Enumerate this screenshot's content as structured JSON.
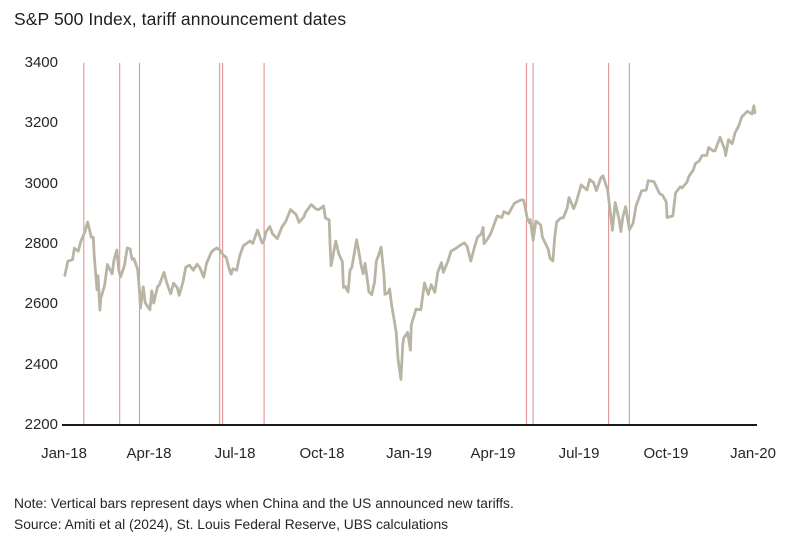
{
  "title": "S&P 500 Index, tariff announcement dates",
  "note": "Note: Vertical bars represent days when China and the US announced new tariffs.",
  "source": "Source: Amiti et al (2024), St. Louis Federal Reserve, UBS calculations",
  "colors": {
    "series_line": "#b9b5a4",
    "tariff_line": "#e29492",
    "axis": "#1a1a1a",
    "text": "#262626"
  },
  "chart_data": {
    "type": "line",
    "title": "S&P 500 Index, tariff announcement dates",
    "grid": false,
    "legend": "none",
    "y_axis": {
      "min": 2200,
      "max": 3400,
      "tick_interval": 200,
      "ticks": [
        2200,
        2400,
        2600,
        2800,
        3000,
        3200,
        3400
      ]
    },
    "x_axis": {
      "start_date": "2018-01-01",
      "end_date": "2020-01-01",
      "ticks": [
        {
          "label": "Jan-18",
          "date": "2018-01-01"
        },
        {
          "label": "Apr-18",
          "date": "2018-04-01"
        },
        {
          "label": "Jul-18",
          "date": "2018-07-01"
        },
        {
          "label": "Oct-18",
          "date": "2018-10-01"
        },
        {
          "label": "Jan-19",
          "date": "2019-01-01"
        },
        {
          "label": "Apr-19",
          "date": "2019-04-01"
        },
        {
          "label": "Jul-19",
          "date": "2019-07-01"
        },
        {
          "label": "Oct-19",
          "date": "2019-10-01"
        },
        {
          "label": "Jan-20",
          "date": "2020-01-01"
        }
      ]
    },
    "tariff_announcement_dates": [
      "2018-01-22",
      "2018-03-01",
      "2018-03-22",
      "2018-06-15",
      "2018-06-18",
      "2018-08-01",
      "2019-05-06",
      "2019-05-13",
      "2019-08-01",
      "2019-08-23"
    ],
    "series": [
      {
        "name": "S&P 500 Index",
        "points": [
          [
            "2018-01-02",
            2696
          ],
          [
            "2018-01-05",
            2743
          ],
          [
            "2018-01-10",
            2748
          ],
          [
            "2018-01-12",
            2786
          ],
          [
            "2018-01-16",
            2776
          ],
          [
            "2018-01-19",
            2810
          ],
          [
            "2018-01-23",
            2839
          ],
          [
            "2018-01-26",
            2873
          ],
          [
            "2018-01-30",
            2822
          ],
          [
            "2018-02-01",
            2822
          ],
          [
            "2018-02-02",
            2762
          ],
          [
            "2018-02-05",
            2649
          ],
          [
            "2018-02-06",
            2695
          ],
          [
            "2018-02-08",
            2581
          ],
          [
            "2018-02-09",
            2620
          ],
          [
            "2018-02-13",
            2663
          ],
          [
            "2018-02-16",
            2732
          ],
          [
            "2018-02-21",
            2701
          ],
          [
            "2018-02-23",
            2747
          ],
          [
            "2018-02-26",
            2780
          ],
          [
            "2018-02-28",
            2714
          ],
          [
            "2018-03-02",
            2691
          ],
          [
            "2018-03-06",
            2728
          ],
          [
            "2018-03-09",
            2787
          ],
          [
            "2018-03-12",
            2783
          ],
          [
            "2018-03-14",
            2749
          ],
          [
            "2018-03-16",
            2752
          ],
          [
            "2018-03-20",
            2717
          ],
          [
            "2018-03-22",
            2644
          ],
          [
            "2018-03-23",
            2588
          ],
          [
            "2018-03-26",
            2658
          ],
          [
            "2018-03-28",
            2605
          ],
          [
            "2018-04-02",
            2582
          ],
          [
            "2018-04-04",
            2645
          ],
          [
            "2018-04-06",
            2604
          ],
          [
            "2018-04-10",
            2657
          ],
          [
            "2018-04-12",
            2664
          ],
          [
            "2018-04-17",
            2706
          ],
          [
            "2018-04-20",
            2670
          ],
          [
            "2018-04-24",
            2635
          ],
          [
            "2018-04-27",
            2670
          ],
          [
            "2018-05-01",
            2655
          ],
          [
            "2018-05-03",
            2630
          ],
          [
            "2018-05-07",
            2673
          ],
          [
            "2018-05-10",
            2723
          ],
          [
            "2018-05-14",
            2730
          ],
          [
            "2018-05-18",
            2713
          ],
          [
            "2018-05-22",
            2733
          ],
          [
            "2018-05-25",
            2721
          ],
          [
            "2018-05-29",
            2690
          ],
          [
            "2018-06-01",
            2735
          ],
          [
            "2018-06-06",
            2772
          ],
          [
            "2018-06-08",
            2779
          ],
          [
            "2018-06-12",
            2787
          ],
          [
            "2018-06-15",
            2780
          ],
          [
            "2018-06-19",
            2763
          ],
          [
            "2018-06-22",
            2755
          ],
          [
            "2018-06-25",
            2717
          ],
          [
            "2018-06-27",
            2700
          ],
          [
            "2018-06-29",
            2718
          ],
          [
            "2018-07-03",
            2713
          ],
          [
            "2018-07-06",
            2760
          ],
          [
            "2018-07-10",
            2794
          ],
          [
            "2018-07-13",
            2801
          ],
          [
            "2018-07-17",
            2810
          ],
          [
            "2018-07-20",
            2802
          ],
          [
            "2018-07-25",
            2846
          ],
          [
            "2018-07-30",
            2803
          ],
          [
            "2018-08-01",
            2813
          ],
          [
            "2018-08-03",
            2840
          ],
          [
            "2018-08-07",
            2858
          ],
          [
            "2018-08-10",
            2833
          ],
          [
            "2018-08-15",
            2818
          ],
          [
            "2018-08-20",
            2857
          ],
          [
            "2018-08-24",
            2875
          ],
          [
            "2018-08-29",
            2914
          ],
          [
            "2018-09-04",
            2897
          ],
          [
            "2018-09-07",
            2872
          ],
          [
            "2018-09-12",
            2889
          ],
          [
            "2018-09-14",
            2905
          ],
          [
            "2018-09-20",
            2931
          ],
          [
            "2018-09-25",
            2916
          ],
          [
            "2018-09-28",
            2914
          ],
          [
            "2018-10-03",
            2926
          ],
          [
            "2018-10-05",
            2886
          ],
          [
            "2018-10-09",
            2880
          ],
          [
            "2018-10-10",
            2785
          ],
          [
            "2018-10-11",
            2728
          ],
          [
            "2018-10-16",
            2810
          ],
          [
            "2018-10-19",
            2768
          ],
          [
            "2018-10-23",
            2741
          ],
          [
            "2018-10-24",
            2656
          ],
          [
            "2018-10-26",
            2659
          ],
          [
            "2018-10-29",
            2641
          ],
          [
            "2018-10-31",
            2712
          ],
          [
            "2018-11-02",
            2723
          ],
          [
            "2018-11-07",
            2814
          ],
          [
            "2018-11-09",
            2781
          ],
          [
            "2018-11-12",
            2726
          ],
          [
            "2018-11-14",
            2702
          ],
          [
            "2018-11-16",
            2736
          ],
          [
            "2018-11-20",
            2642
          ],
          [
            "2018-11-23",
            2632
          ],
          [
            "2018-11-26",
            2673
          ],
          [
            "2018-11-28",
            2744
          ],
          [
            "2018-11-30",
            2760
          ],
          [
            "2018-12-03",
            2790
          ],
          [
            "2018-12-06",
            2696
          ],
          [
            "2018-12-07",
            2633
          ],
          [
            "2018-12-10",
            2637
          ],
          [
            "2018-12-12",
            2651
          ],
          [
            "2018-12-14",
            2600
          ],
          [
            "2018-12-17",
            2546
          ],
          [
            "2018-12-19",
            2507
          ],
          [
            "2018-12-21",
            2417
          ],
          [
            "2018-12-24",
            2351
          ],
          [
            "2018-12-26",
            2468
          ],
          [
            "2018-12-27",
            2489
          ],
          [
            "2018-12-31",
            2507
          ],
          [
            "2019-01-03",
            2448
          ],
          [
            "2019-01-04",
            2532
          ],
          [
            "2019-01-08",
            2574
          ],
          [
            "2019-01-09",
            2584
          ],
          [
            "2019-01-14",
            2582
          ],
          [
            "2019-01-18",
            2671
          ],
          [
            "2019-01-22",
            2633
          ],
          [
            "2019-01-25",
            2665
          ],
          [
            "2019-01-29",
            2640
          ],
          [
            "2019-02-01",
            2707
          ],
          [
            "2019-02-05",
            2738
          ],
          [
            "2019-02-07",
            2706
          ],
          [
            "2019-02-12",
            2745
          ],
          [
            "2019-02-15",
            2776
          ],
          [
            "2019-02-20",
            2785
          ],
          [
            "2019-02-25",
            2796
          ],
          [
            "2019-03-01",
            2804
          ],
          [
            "2019-03-04",
            2793
          ],
          [
            "2019-03-08",
            2743
          ],
          [
            "2019-03-12",
            2791
          ],
          [
            "2019-03-15",
            2822
          ],
          [
            "2019-03-19",
            2833
          ],
          [
            "2019-03-21",
            2855
          ],
          [
            "2019-03-22",
            2801
          ],
          [
            "2019-03-26",
            2818
          ],
          [
            "2019-03-29",
            2834
          ],
          [
            "2019-04-02",
            2867
          ],
          [
            "2019-04-05",
            2893
          ],
          [
            "2019-04-10",
            2888
          ],
          [
            "2019-04-12",
            2907
          ],
          [
            "2019-04-17",
            2900
          ],
          [
            "2019-04-23",
            2934
          ],
          [
            "2019-04-26",
            2940
          ],
          [
            "2019-04-30",
            2946
          ],
          [
            "2019-05-03",
            2946
          ],
          [
            "2019-05-07",
            2884
          ],
          [
            "2019-05-09",
            2871
          ],
          [
            "2019-05-10",
            2881
          ],
          [
            "2019-05-13",
            2812
          ],
          [
            "2019-05-16",
            2876
          ],
          [
            "2019-05-21",
            2864
          ],
          [
            "2019-05-23",
            2822
          ],
          [
            "2019-05-29",
            2783
          ],
          [
            "2019-05-31",
            2752
          ],
          [
            "2019-06-03",
            2744
          ],
          [
            "2019-06-05",
            2826
          ],
          [
            "2019-06-07",
            2873
          ],
          [
            "2019-06-11",
            2886
          ],
          [
            "2019-06-14",
            2887
          ],
          [
            "2019-06-18",
            2918
          ],
          [
            "2019-06-20",
            2954
          ],
          [
            "2019-06-25",
            2917
          ],
          [
            "2019-06-28",
            2942
          ],
          [
            "2019-07-03",
            2996
          ],
          [
            "2019-07-09",
            2979
          ],
          [
            "2019-07-12",
            3014
          ],
          [
            "2019-07-16",
            3004
          ],
          [
            "2019-07-19",
            2977
          ],
          [
            "2019-07-24",
            3020
          ],
          [
            "2019-07-26",
            3026
          ],
          [
            "2019-07-31",
            2980
          ],
          [
            "2019-08-01",
            2953
          ],
          [
            "2019-08-05",
            2845
          ],
          [
            "2019-08-08",
            2938
          ],
          [
            "2019-08-12",
            2883
          ],
          [
            "2019-08-14",
            2841
          ],
          [
            "2019-08-16",
            2889
          ],
          [
            "2019-08-19",
            2924
          ],
          [
            "2019-08-23",
            2847
          ],
          [
            "2019-08-27",
            2869
          ],
          [
            "2019-08-30",
            2926
          ],
          [
            "2019-09-05",
            2976
          ],
          [
            "2019-09-10",
            2979
          ],
          [
            "2019-09-12",
            3010
          ],
          [
            "2019-09-18",
            3007
          ],
          [
            "2019-09-24",
            2967
          ],
          [
            "2019-09-27",
            2962
          ],
          [
            "2019-10-01",
            2940
          ],
          [
            "2019-10-02",
            2888
          ],
          [
            "2019-10-08",
            2893
          ],
          [
            "2019-10-11",
            2970
          ],
          [
            "2019-10-16",
            2990
          ],
          [
            "2019-10-18",
            2986
          ],
          [
            "2019-10-23",
            3005
          ],
          [
            "2019-10-25",
            3023
          ],
          [
            "2019-10-30",
            3047
          ],
          [
            "2019-11-01",
            3067
          ],
          [
            "2019-11-05",
            3075
          ],
          [
            "2019-11-08",
            3093
          ],
          [
            "2019-11-13",
            3094
          ],
          [
            "2019-11-15",
            3120
          ],
          [
            "2019-11-20",
            3108
          ],
          [
            "2019-11-22",
            3110
          ],
          [
            "2019-11-27",
            3154
          ],
          [
            "2019-12-02",
            3114
          ],
          [
            "2019-12-03",
            3093
          ],
          [
            "2019-12-06",
            3146
          ],
          [
            "2019-12-10",
            3132
          ],
          [
            "2019-12-13",
            3169
          ],
          [
            "2019-12-17",
            3192
          ],
          [
            "2019-12-20",
            3221
          ],
          [
            "2019-12-26",
            3240
          ],
          [
            "2019-12-31",
            3231
          ],
          [
            "2020-01-02",
            3258
          ],
          [
            "2020-01-03",
            3235
          ]
        ]
      }
    ]
  }
}
